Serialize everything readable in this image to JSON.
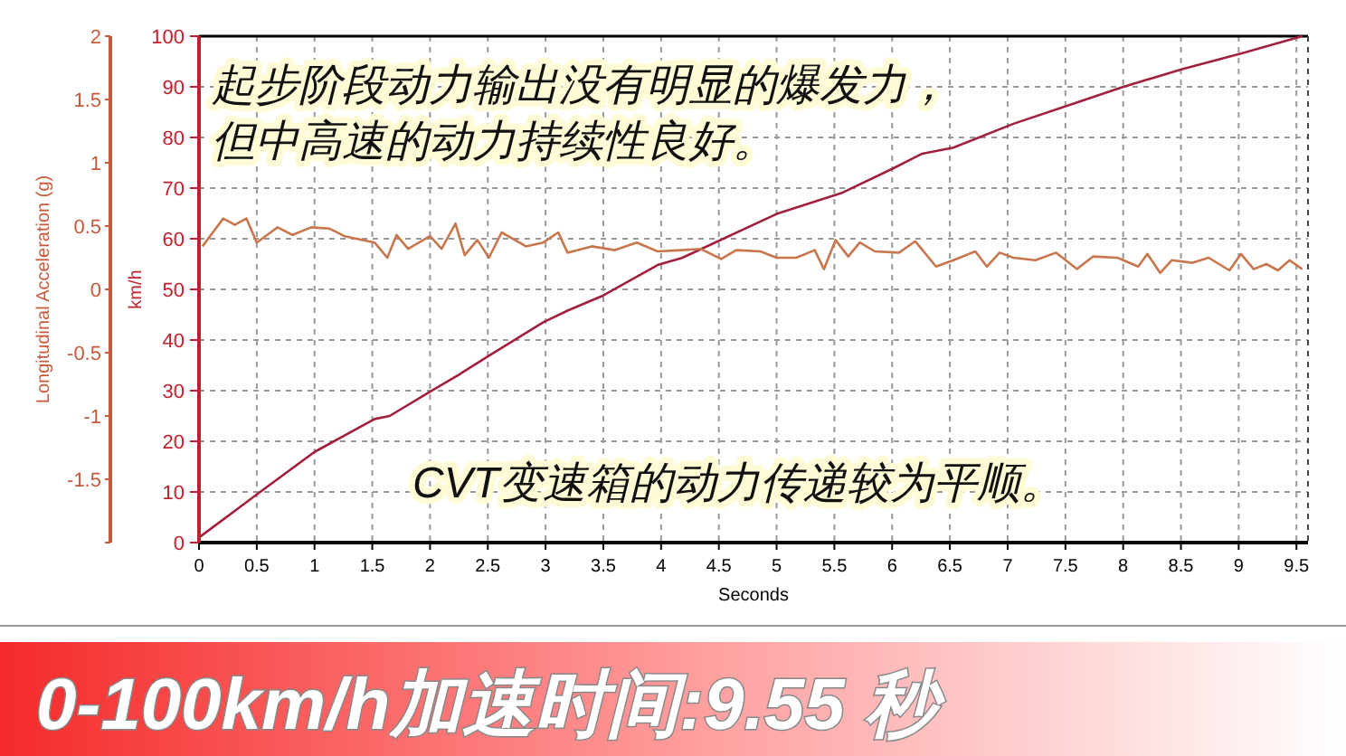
{
  "chart_data": {
    "type": "line",
    "title": "0-100km/h加速时间:9.55 秒",
    "xlabel": "Seconds",
    "ylabel": "km/h",
    "y2label": "Longitudinal Acceleration (g)",
    "annotations": [
      "起步阶段动力输出没有明显的爆发力，",
      "但中高速的动力持续性良好。",
      "CVT变速箱的动力传递较为平顺。"
    ],
    "series": [
      {
        "color": "#a3203c",
        "x": [
          0,
          0.5,
          1.0,
          1.52,
          1.65,
          2.0,
          2.26,
          2.51,
          2.98,
          3.19,
          3.5,
          3.97,
          4.18,
          5.0,
          5.56,
          6.0,
          6.26,
          6.53,
          7.05,
          7.52,
          7.99,
          8.51,
          9.04,
          9.55
        ],
        "values": [
          1,
          9.5,
          17.9,
          24.4,
          25,
          29.8,
          33.3,
          36.9,
          43.5,
          45.8,
          48.8,
          54.8,
          56.2,
          64.9,
          69,
          73.8,
          76.8,
          78,
          82.7,
          86.3,
          89.9,
          93.5,
          96.7,
          100
        ]
      },
      {
        "color": "#c8764e",
        "axis": "y2",
        "x": [
          0.03,
          0.21,
          0.31,
          0.41,
          0.5,
          0.68,
          0.81,
          0.97,
          1.13,
          1.26,
          1.52,
          1.63,
          1.71,
          1.81,
          2.0,
          2.1,
          2.22,
          2.3,
          2.41,
          2.51,
          2.62,
          2.83,
          2.98,
          3.11,
          3.19,
          3.4,
          3.6,
          3.79,
          3.97,
          4.18,
          4.34,
          4.52,
          4.65,
          4.86,
          5.0,
          5.17,
          5.33,
          5.41,
          5.51,
          5.62,
          5.72,
          5.85,
          6.06,
          6.2,
          6.38,
          6.53,
          6.72,
          6.82,
          6.93,
          7.05,
          7.24,
          7.42,
          7.6,
          7.74,
          7.95,
          8.13,
          8.21,
          8.32,
          8.42,
          8.6,
          8.74,
          8.92,
          9.02,
          9.13,
          9.24,
          9.34,
          9.44,
          9.55
        ],
        "values": [
          0.34,
          0.56,
          0.51,
          0.56,
          0.37,
          0.49,
          0.43,
          0.49,
          0.48,
          0.42,
          0.37,
          0.25,
          0.43,
          0.32,
          0.42,
          0.32,
          0.52,
          0.27,
          0.39,
          0.25,
          0.45,
          0.34,
          0.37,
          0.45,
          0.29,
          0.34,
          0.31,
          0.37,
          0.3,
          0.31,
          0.32,
          0.24,
          0.31,
          0.3,
          0.25,
          0.25,
          0.31,
          0.16,
          0.39,
          0.26,
          0.37,
          0.3,
          0.29,
          0.38,
          0.18,
          0.23,
          0.3,
          0.18,
          0.29,
          0.25,
          0.23,
          0.29,
          0.16,
          0.26,
          0.25,
          0.18,
          0.28,
          0.13,
          0.23,
          0.21,
          0.25,
          0.15,
          0.28,
          0.16,
          0.2,
          0.15,
          0.23,
          0.16
        ]
      }
    ],
    "xlim": [
      0,
      9.6
    ],
    "xticks": [
      0,
      0.5,
      1,
      1.5,
      2,
      2.5,
      3,
      3.5,
      4,
      4.5,
      5,
      5.5,
      6,
      6.5,
      7,
      7.5,
      8,
      8.5,
      9,
      9.5
    ],
    "ylim": [
      0,
      100
    ],
    "yticks": [
      0,
      10,
      20,
      30,
      40,
      50,
      60,
      70,
      80,
      90,
      100
    ],
    "y2lim": [
      -2,
      2
    ],
    "y2ticks": [
      {
        "value": -2,
        "label": null
      },
      -1.5,
      -1,
      -0.5,
      0,
      0.5,
      1,
      1.5,
      2
    ],
    "grid": true,
    "line_style": "solid",
    "marker": "none"
  }
}
